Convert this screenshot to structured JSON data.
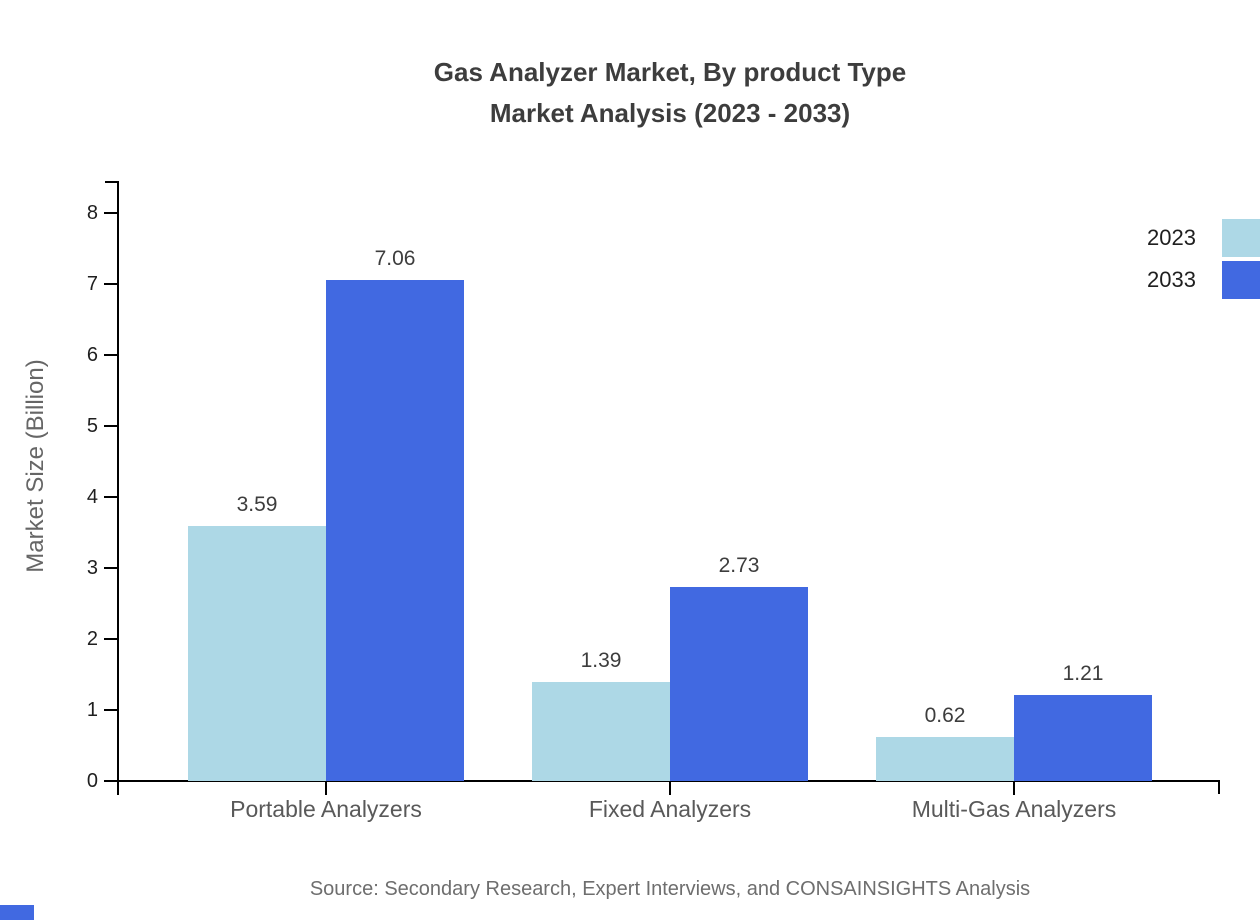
{
  "title": {
    "line1": "Gas Analyzer Market, By product Type",
    "line2": "Market Analysis (2023 - 2033)"
  },
  "chart_data": {
    "type": "bar",
    "title": "Gas Analyzer Market, By product Type Market Analysis (2023 - 2033)",
    "categories": [
      "Portable Analyzers",
      "Fixed Analyzers",
      "Multi-Gas Analyzers"
    ],
    "series": [
      {
        "name": "2023",
        "color": "#ADD8E6",
        "values": [
          3.59,
          1.39,
          0.62
        ]
      },
      {
        "name": "2033",
        "color": "#4169E1",
        "values": [
          7.06,
          2.73,
          1.21
        ]
      }
    ],
    "xlabel": "",
    "ylabel": "Market Size (Billion)",
    "ylim": [
      0,
      8
    ],
    "yticks": [
      0,
      1,
      2,
      3,
      4,
      5,
      6,
      7,
      8
    ],
    "grid": false,
    "legend_position": "top-right",
    "value_labels": true
  },
  "source": {
    "text": "Source: Secondary Research, Expert Interviews, and CONSAINSIGHTS Analysis"
  },
  "colors": {
    "series_2023": "#ADD8E6",
    "series_2033": "#4169E1",
    "axis": "#000000",
    "title_text": "#3d3d3d",
    "category_text": "#595959",
    "tick_text": "#1f1f1f",
    "value_text": "#3d3d3d",
    "source_text": "#6e6e6e",
    "brand_mark": "#4169E1"
  }
}
